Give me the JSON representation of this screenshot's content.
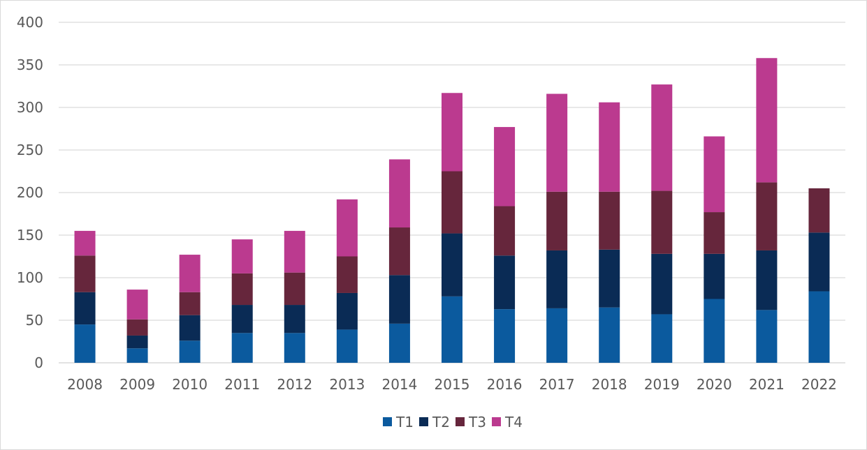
{
  "chart_data": {
    "type": "bar",
    "stacked": true,
    "title": "",
    "xlabel": "",
    "ylabel": "",
    "ylim": [
      0,
      400
    ],
    "yticks": [
      0,
      50,
      100,
      150,
      200,
      250,
      300,
      350,
      400
    ],
    "categories": [
      "2008",
      "2009",
      "2010",
      "2011",
      "2012",
      "2013",
      "2014",
      "2015",
      "2016",
      "2017",
      "2018",
      "2019",
      "2020",
      "2021",
      "2022"
    ],
    "series": [
      {
        "name": "T1",
        "color": "#0B5A9E",
        "values": [
          45,
          17,
          26,
          35,
          35,
          39,
          46,
          78,
          63,
          64,
          65,
          57,
          75,
          62,
          84
        ]
      },
      {
        "name": "T2",
        "color": "#0A2B55",
        "values": [
          38,
          15,
          30,
          33,
          33,
          43,
          57,
          74,
          63,
          68,
          68,
          71,
          53,
          70,
          69
        ]
      },
      {
        "name": "T3",
        "color": "#66263C",
        "values": [
          43,
          19,
          27,
          37,
          38,
          43,
          56,
          73,
          58,
          69,
          68,
          74,
          49,
          80,
          52
        ]
      },
      {
        "name": "T4",
        "color": "#BB3A8F",
        "values": [
          29,
          35,
          44,
          40,
          49,
          67,
          80,
          92,
          93,
          115,
          105,
          125,
          89,
          146,
          0
        ]
      }
    ],
    "grid": true,
    "legend": "bottom-center"
  }
}
